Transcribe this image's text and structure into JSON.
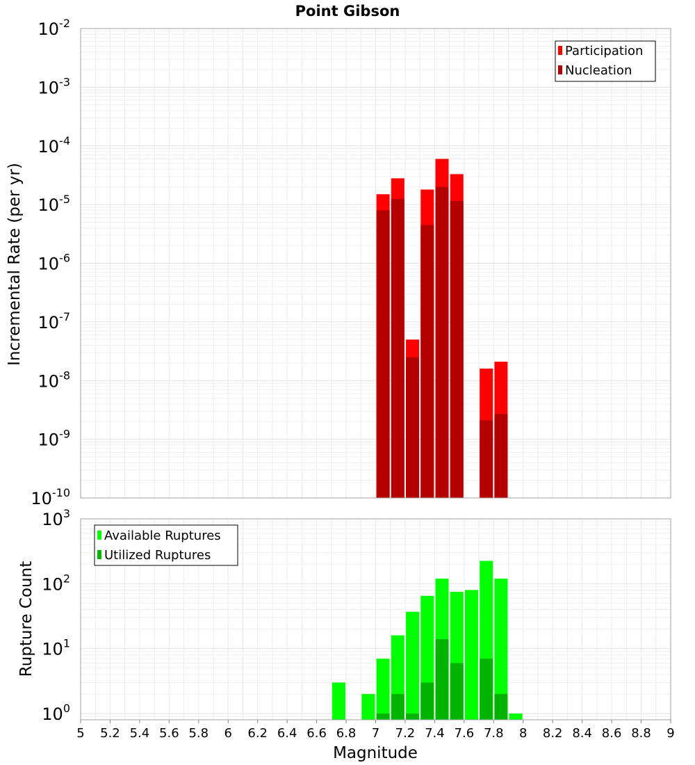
{
  "chart_data": [
    {
      "type": "bar",
      "title": "Point Gibson",
      "ylabel": "Incremental Rate (per yr)",
      "xlim": [
        5,
        9
      ],
      "y_scale": "log",
      "ylim": [
        1e-10,
        0.01
      ],
      "y_tick_exponents": [
        "-10",
        "-9",
        "-8",
        "-7",
        "-6",
        "-5",
        "-4",
        "-3",
        "-2"
      ],
      "y_tick_base": "10",
      "grid": true,
      "legend_position": "top-right",
      "series": [
        {
          "name": "Participation",
          "color": "#ff0000",
          "x": [
            7.05,
            7.15,
            7.25,
            7.35,
            7.45,
            7.55,
            7.75,
            7.85
          ],
          "values": [
            1.5e-05,
            2.8e-05,
            5e-08,
            1.8e-05,
            6e-05,
            3.3e-05,
            1.6e-08,
            2.1e-08
          ]
        },
        {
          "name": "Nucleation",
          "color": "#b40000",
          "x": [
            7.05,
            7.15,
            7.25,
            7.35,
            7.45,
            7.55,
            7.75,
            7.85
          ],
          "values": [
            8e-06,
            1.25e-05,
            2.5e-08,
            4.5e-06,
            2e-05,
            1.15e-05,
            2.1e-09,
            2.7e-09
          ]
        }
      ]
    },
    {
      "type": "bar",
      "xlabel": "Magnitude",
      "ylabel": "Rupture Count",
      "xlim": [
        5,
        9
      ],
      "x_ticks": [
        "5",
        "5.2",
        "5.4",
        "5.6",
        "5.8",
        "6",
        "6.2",
        "6.4",
        "6.6",
        "6.8",
        "7",
        "7.2",
        "7.4",
        "7.6",
        "7.8",
        "8",
        "8.2",
        "8.4",
        "8.6",
        "8.8",
        "9"
      ],
      "y_scale": "log",
      "ylim": [
        0.8,
        1000
      ],
      "y_tick_exponents": [
        "0",
        "1",
        "2",
        "3"
      ],
      "y_tick_base": "10",
      "grid": true,
      "legend_position": "top-left",
      "series": [
        {
          "name": "Available Ruptures",
          "color": "#00ff00",
          "x": [
            6.75,
            6.95,
            7.05,
            7.15,
            7.25,
            7.35,
            7.45,
            7.55,
            7.65,
            7.75,
            7.85,
            7.95
          ],
          "values": [
            3,
            2,
            7,
            16,
            37,
            65,
            120,
            75,
            80,
            225,
            120,
            1
          ]
        },
        {
          "name": "Utilized Ruptures",
          "color": "#00b400",
          "x": [
            7.05,
            7.15,
            7.25,
            7.35,
            7.45,
            7.55,
            7.75,
            7.85
          ],
          "values": [
            1,
            2,
            1,
            3,
            14,
            6,
            7,
            2
          ]
        }
      ]
    }
  ]
}
